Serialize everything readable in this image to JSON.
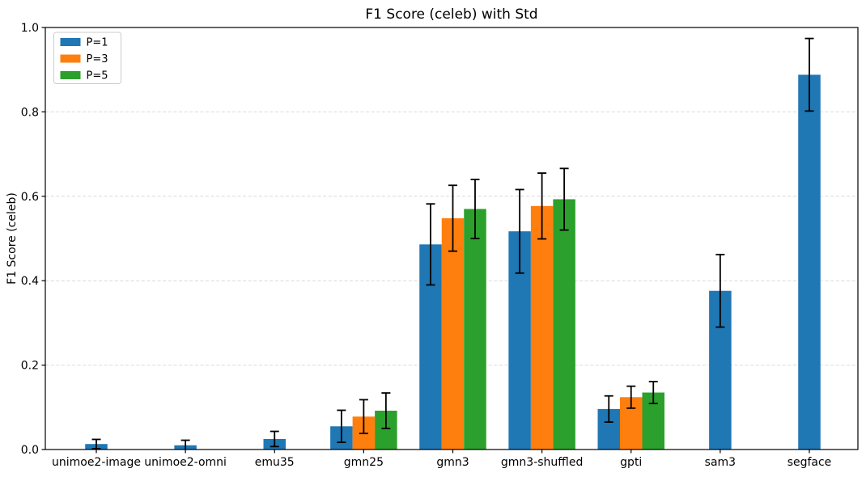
{
  "chart_data": {
    "type": "bar",
    "title": "F1 Score (celeb) with Std",
    "xlabel": "",
    "ylabel": "F1 Score (celeb)",
    "ylim": [
      0.0,
      1.0
    ],
    "yticks": [
      0.0,
      0.2,
      0.4,
      0.6,
      0.8,
      1.0
    ],
    "grid": "horizontal-dashed",
    "grid_color": "#d9d9d9",
    "legend_position": "upper-left",
    "error_bar_color": "#000000",
    "axis_color": "#000000",
    "categories": [
      "unimoe2-image",
      "unimoe2-omni",
      "emu35",
      "gmn25",
      "gmn3",
      "gmn3-shuffled",
      "gpti",
      "sam3",
      "segface"
    ],
    "series": [
      {
        "name": "P=1",
        "color": "#1f77b4",
        "values": [
          0.013,
          0.01,
          0.025,
          0.055,
          0.486,
          0.517,
          0.096,
          0.376,
          0.888
        ],
        "std": [
          0.011,
          0.012,
          0.018,
          0.038,
          0.096,
          0.099,
          0.031,
          0.086,
          0.086
        ]
      },
      {
        "name": "P=3",
        "color": "#ff7f0e",
        "values": [
          null,
          null,
          null,
          0.078,
          0.548,
          0.577,
          0.124,
          null,
          null
        ],
        "std": [
          null,
          null,
          null,
          0.04,
          0.078,
          0.078,
          0.026,
          null,
          null
        ]
      },
      {
        "name": "P=5",
        "color": "#2ca02c",
        "values": [
          null,
          null,
          null,
          0.092,
          0.57,
          0.593,
          0.135,
          null,
          null
        ],
        "std": [
          null,
          null,
          null,
          0.042,
          0.07,
          0.073,
          0.026,
          null,
          null
        ]
      }
    ]
  }
}
